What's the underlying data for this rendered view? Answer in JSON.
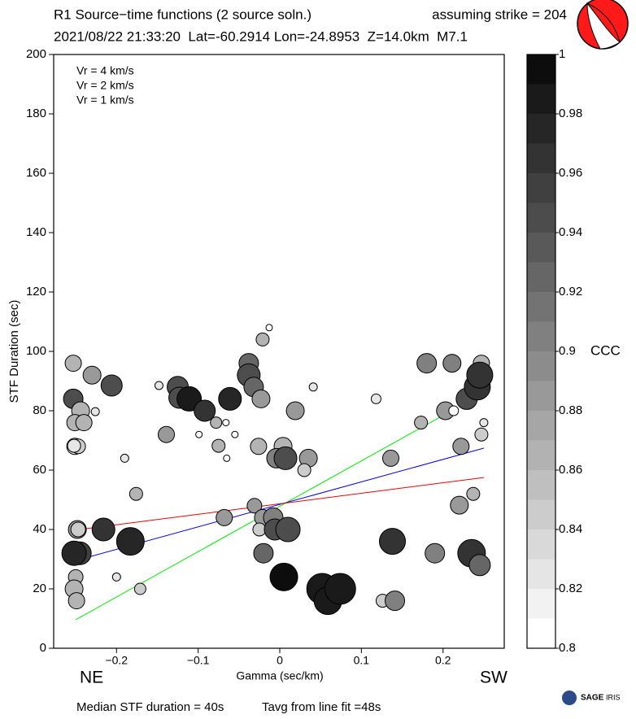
{
  "chart_data": {
    "type": "scatter",
    "title": "R1 Source−time functions (2 source soln.)",
    "subtitle_right": "assuming strike = 204",
    "subtitle": "2021/08/22 21:33:20  Lat=-60.2914 Lon=-24.8953  Z=14.0km  M7.1",
    "x_label": "Gamma (sec/km)",
    "y_label": "STF Duration (sec)",
    "left_annotation": "NE",
    "right_annotation": "SW",
    "footer_left": "Median STF duration = 40s",
    "footer_right": "Tavg from line fit =48s",
    "logo": [
      "SAGE",
      "IRIS"
    ],
    "xlim": [
      -0.277,
      0.275
    ],
    "ylim": [
      0,
      200
    ],
    "xticks": [
      {
        "value": -0.2,
        "label": "−0.2"
      },
      {
        "value": -0.1,
        "label": "−0.1"
      },
      0,
      0.1,
      0.2
    ],
    "yticks": [
      0,
      20,
      40,
      60,
      80,
      100,
      120,
      140,
      160,
      180,
      200
    ],
    "points": {
      "x": [
        -0.253,
        -0.23,
        -0.253,
        -0.206,
        -0.244,
        -0.251,
        -0.24,
        -0.226,
        -0.251,
        -0.247,
        -0.252,
        -0.19,
        -0.176,
        -0.216,
        -0.248,
        -0.247,
        -0.183,
        -0.245,
        -0.252,
        -0.25,
        -0.252,
        -0.249,
        -0.2,
        -0.171,
        -0.148,
        -0.125,
        -0.123,
        -0.111,
        -0.092,
        -0.139,
        -0.099,
        -0.078,
        -0.066,
        -0.075,
        -0.055,
        -0.065,
        -0.061,
        -0.021,
        -0.038,
        -0.047,
        -0.038,
        -0.032,
        -0.023,
        -0.013,
        -0.026,
        0.004,
        -0.004,
        0.007,
        0.035,
        0.03,
        0.019,
        0.041,
        -0.031,
        -0.021,
        -0.025,
        -0.008,
        -0.006,
        0.01,
        -0.02,
        -0.068,
        0.005,
        0.052,
        0.059,
        0.074,
        0.118,
        0.136,
        0.138,
        0.126,
        0.141,
        0.173,
        0.18,
        0.211,
        0.203,
        0.213,
        0.229,
        0.222,
        0.22,
        0.237,
        0.19,
        0.235,
        0.245,
        0.247,
        0.247,
        0.25,
        0.242,
        0.245
      ],
      "y": [
        96,
        92,
        84,
        88.5,
        80,
        76,
        76,
        79.7,
        68,
        68,
        68.2,
        64,
        52,
        40,
        40,
        40,
        36,
        32,
        32,
        24,
        20,
        16,
        24,
        20,
        88.5,
        88,
        84.4,
        84,
        80,
        72,
        72,
        76,
        76,
        68.2,
        72,
        64,
        84,
        104,
        96,
        92,
        92,
        88,
        84,
        108,
        68,
        68,
        64,
        64,
        64,
        60,
        80,
        88,
        48,
        44,
        40,
        44,
        40,
        40,
        32,
        44,
        24,
        20,
        16,
        20,
        84,
        64,
        36,
        16,
        16,
        76,
        96,
        96,
        80,
        80,
        84,
        68,
        48.2,
        52,
        32,
        32,
        28,
        96,
        72,
        76,
        88,
        92
      ],
      "sizes": [
        10,
        11,
        12,
        13,
        11,
        10,
        10,
        5,
        10,
        9,
        8,
        5,
        8,
        14,
        11,
        9,
        17,
        14,
        15,
        9,
        11,
        10,
        5,
        7,
        5,
        13,
        13,
        15,
        13,
        10,
        4,
        7,
        4,
        8,
        4,
        4,
        14,
        8,
        12,
        5,
        14,
        12,
        11,
        4,
        10,
        11,
        12,
        14,
        11,
        8,
        11,
        5,
        9,
        10,
        8,
        12,
        13,
        15,
        12,
        10,
        17,
        19,
        17,
        19,
        6,
        10,
        16,
        8,
        12,
        8,
        12,
        11,
        11,
        6,
        13,
        10,
        11,
        8,
        12,
        17,
        13,
        10,
        8,
        5,
        16,
        16
      ],
      "ccc": [
        0.86,
        0.88,
        0.94,
        0.94,
        0.86,
        0.86,
        0.86,
        0.82,
        0.82,
        0.84,
        0.82,
        0.82,
        0.86,
        0.96,
        0.88,
        0.84,
        0.97,
        0.95,
        0.97,
        0.86,
        0.86,
        0.86,
        0.82,
        0.84,
        0.82,
        0.94,
        0.94,
        0.98,
        0.96,
        0.88,
        0.8,
        0.86,
        0.8,
        0.86,
        0.8,
        0.8,
        0.97,
        0.86,
        0.92,
        0.8,
        0.94,
        0.92,
        0.88,
        0.8,
        0.86,
        0.86,
        0.9,
        0.94,
        0.88,
        0.84,
        0.88,
        0.82,
        0.88,
        0.88,
        0.84,
        0.9,
        0.94,
        0.94,
        0.92,
        0.88,
        0.99,
        0.98,
        0.98,
        0.98,
        0.82,
        0.88,
        0.96,
        0.84,
        0.9,
        0.86,
        0.9,
        0.9,
        0.88,
        0.8,
        0.94,
        0.88,
        0.88,
        0.86,
        0.9,
        0.96,
        0.92,
        0.86,
        0.84,
        0.82,
        0.96,
        0.96
      ]
    },
    "lines": [
      {
        "name": "Vr = 4 km/s",
        "color": "#00ee00",
        "x": [
          -0.25,
          0.2
        ],
        "y": [
          9.6,
          78.4
        ]
      },
      {
        "name": "Vr = 2 km/s",
        "color": "#0000ee",
        "x": [
          -0.245,
          0.25
        ],
        "y": [
          29.9,
          67.4
        ]
      },
      {
        "name": "Vr = 1 km/s",
        "color": "#ee0000",
        "x": [
          -0.245,
          0.25
        ],
        "y": [
          40,
          57.5
        ]
      }
    ],
    "colorbar": {
      "label": "CCC",
      "lim": [
        0.8,
        1
      ],
      "step": 0.01,
      "ticks": [
        0.8,
        0.82,
        0.84,
        0.86,
        0.88,
        0.9,
        0.92,
        0.94,
        0.96,
        0.98,
        1
      ]
    }
  }
}
